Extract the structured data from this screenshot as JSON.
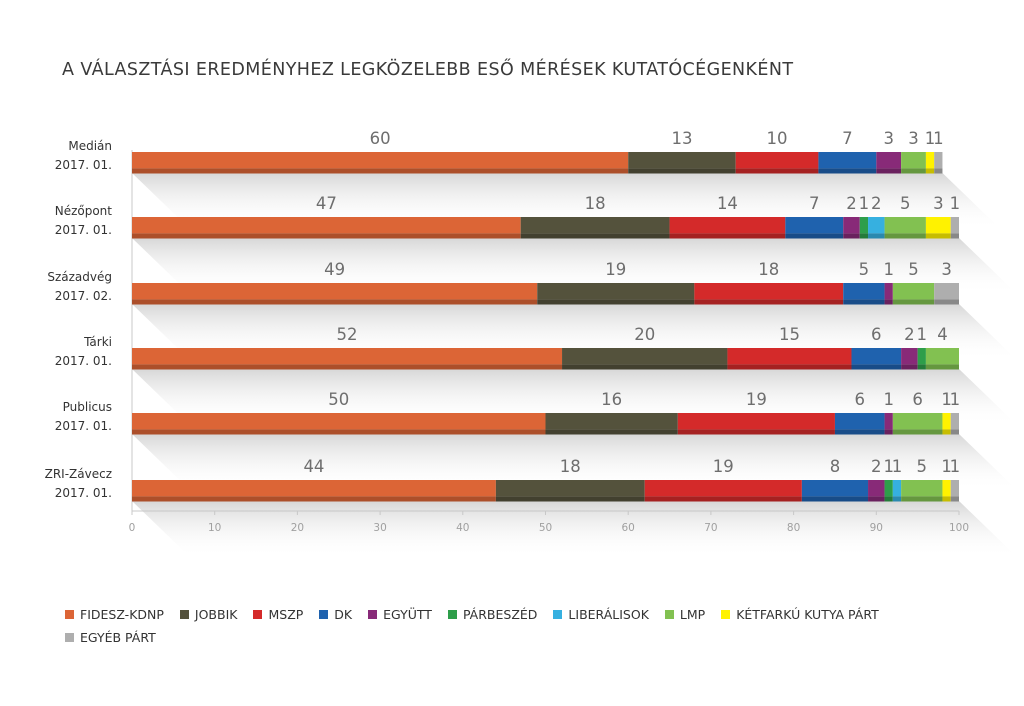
{
  "chart_data": {
    "type": "bar",
    "orientation": "horizontal",
    "stacked": true,
    "title": "A VÁLASZTÁSI EREDMÉNYHEZ LEGKÖZELEBB ESŐ MÉRÉSEK KUTATÓCÉGENKÉNT",
    "xlim": [
      0,
      100
    ],
    "xticks": [
      "0",
      "10",
      "20",
      "30",
      "40",
      "50",
      "60",
      "70",
      "80",
      "90",
      "100"
    ],
    "legend_position": "bottom",
    "categories": [
      {
        "name": "Medián",
        "date": "2017. 01."
      },
      {
        "name": "Nézőpont",
        "date": "2017. 01."
      },
      {
        "name": "Századvég",
        "date": "2017. 02."
      },
      {
        "name": "Tárki",
        "date": "2017. 01."
      },
      {
        "name": "Publicus",
        "date": "2017. 01."
      },
      {
        "name": "ZRI-Závecz",
        "date": "2017. 01."
      }
    ],
    "series": [
      {
        "name": "FIDESZ-KDNP",
        "color": "#dc6536",
        "values": [
          60,
          47,
          49,
          52,
          50,
          44
        ]
      },
      {
        "name": "JOBBIK",
        "color": "#54523c",
        "values": [
          13,
          18,
          19,
          20,
          16,
          18
        ]
      },
      {
        "name": "MSZP",
        "color": "#d42a2a",
        "values": [
          10,
          14,
          18,
          15,
          19,
          19
        ]
      },
      {
        "name": "DK",
        "color": "#1f62ae",
        "values": [
          7,
          7,
          5,
          6,
          6,
          8
        ]
      },
      {
        "name": "EGYÜTT",
        "color": "#882a78",
        "values": [
          3,
          2,
          1,
          2,
          1,
          2
        ]
      },
      {
        "name": "PÁRBESZÉD",
        "color": "#2e9e4a",
        "values": [
          0,
          1,
          0,
          1,
          0,
          1
        ]
      },
      {
        "name": "LIBERÁLISOK",
        "color": "#36b0e0",
        "values": [
          0,
          2,
          0,
          0,
          0,
          1
        ]
      },
      {
        "name": "LMP",
        "color": "#82c151",
        "values": [
          3,
          5,
          5,
          4,
          6,
          5
        ]
      },
      {
        "name": "KÉTFARKÚ KUTYA PÁRT",
        "color": "#fff200",
        "values": [
          1,
          3,
          0,
          0,
          1,
          1
        ]
      },
      {
        "name": "EGYÉB PÁRT",
        "color": "#aeaeae",
        "values": [
          1,
          1,
          3,
          0,
          1,
          1
        ]
      }
    ]
  }
}
